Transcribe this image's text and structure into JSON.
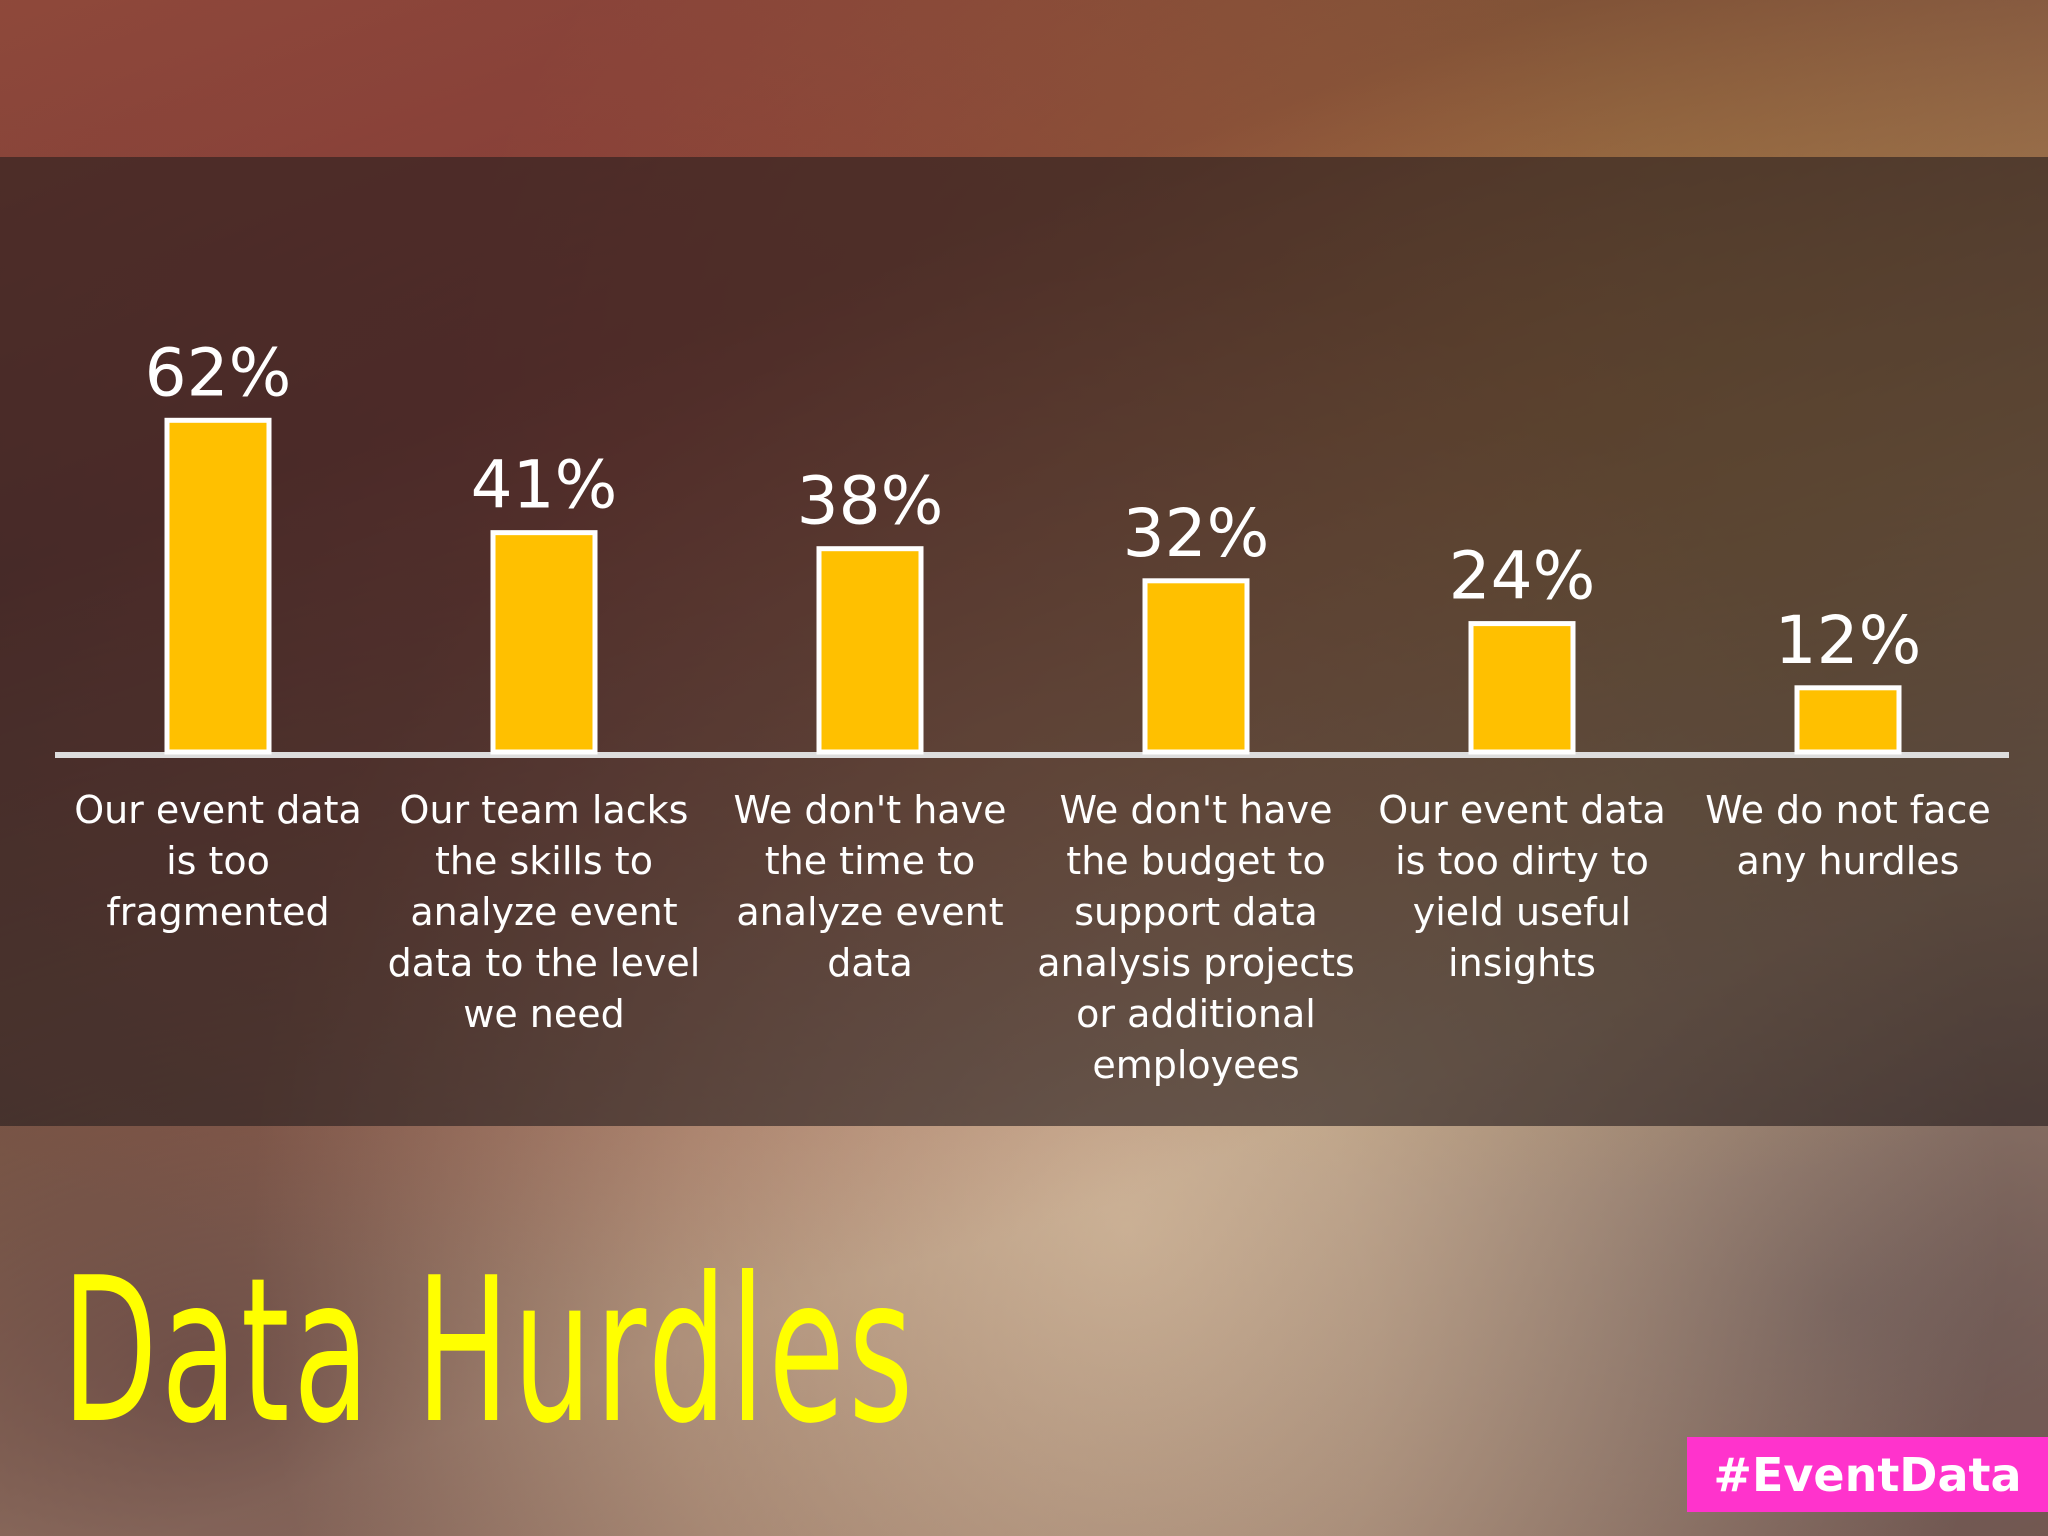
{
  "chart_data": {
    "type": "bar",
    "title": "Data Hurdles",
    "categories": [
      "Our event data is too fragmented",
      "Our team lacks the skills to analyze event data to the level we need",
      "We don't have the time to analyze event data",
      "We don't have the budget to support data analysis projects or additional employees",
      "Our event data is too dirty to yield useful insights",
      "We do not face any hurdles"
    ],
    "values": [
      62,
      41,
      38,
      32,
      24,
      12
    ],
    "value_labels": [
      "62%",
      "41%",
      "38%",
      "32%",
      "24%",
      "12%"
    ],
    "color": "#ffc000"
  },
  "footer": {
    "hashtag": "#EventData"
  }
}
